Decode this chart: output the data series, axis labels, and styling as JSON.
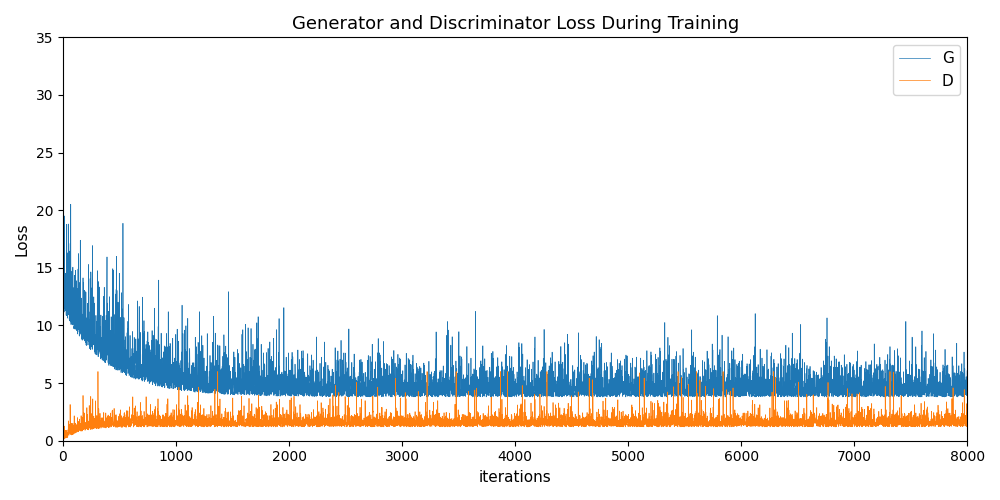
{
  "title": "Generator and Discriminator Loss During Training",
  "xlabel": "iterations",
  "ylabel": "Loss",
  "xlim": [
    0,
    8000
  ],
  "ylim": [
    0,
    35
  ],
  "yticks": [
    0,
    5,
    10,
    15,
    20,
    25,
    30,
    35
  ],
  "xticks": [
    0,
    1000,
    2000,
    3000,
    4000,
    5000,
    6000,
    7000,
    8000
  ],
  "g_color": "#1f77b4",
  "d_color": "#ff7f0e",
  "g_label": "G",
  "d_label": "D",
  "figsize": [
    10,
    5
  ],
  "dpi": 100,
  "seed": 42,
  "n_points": 8000
}
